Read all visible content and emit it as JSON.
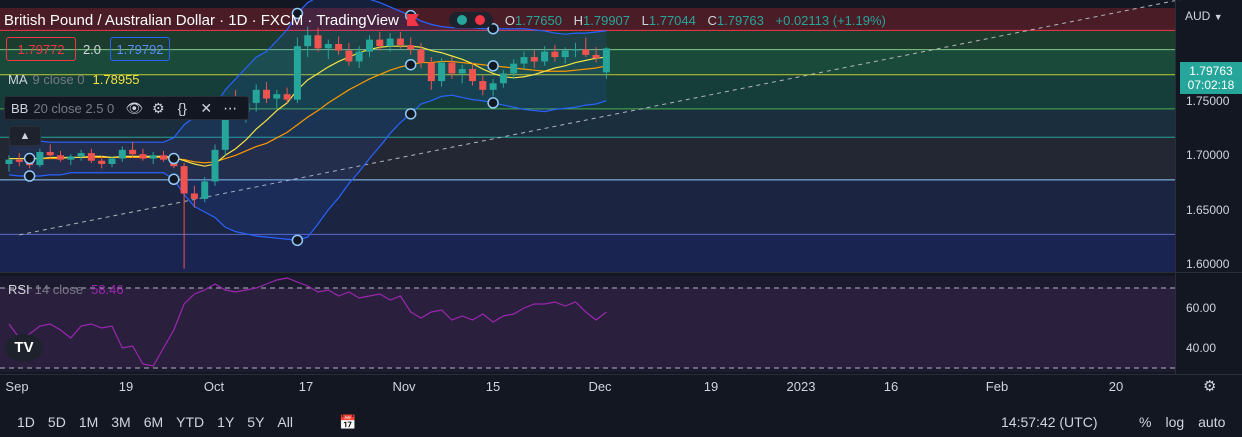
{
  "header": {
    "title": "British Pound / Australian Dollar · 1D · FXCM · TradingView",
    "ohlc": {
      "o_label": "O",
      "o": "1.77650",
      "h_label": "H",
      "h": "1.79907",
      "l_label": "L",
      "l": "1.77044",
      "c_label": "C",
      "c": "1.79763",
      "change": "+0.02113 (+1.19%)"
    },
    "sell_price": "1.79772",
    "spread": "2.0",
    "buy_price": "1.79792",
    "currency": "AUD"
  },
  "indicators": {
    "ma": {
      "name": "MA",
      "args": "9 close 0",
      "value": "1.78955"
    },
    "bb": {
      "name": "BB",
      "args": "20 close 2.5 0"
    },
    "rsi": {
      "name": "RSI",
      "args": "14 close",
      "value": "58.46"
    }
  },
  "price_tag": {
    "price": "1.79763",
    "countdown": "07:02:18"
  },
  "colors": {
    "background": "#131722",
    "up": "#26a69a",
    "down": "#ef5350",
    "ma": "#f5e342",
    "bb_basis": "#ff9800",
    "bb_band": "#2962ff",
    "rsi": "#9c27b0"
  },
  "icons": [
    "eye-icon",
    "gear-icon",
    "braces-icon",
    "close-icon",
    "more-icon",
    "chevron-up-icon",
    "calendar-range-icon",
    "settings-icon"
  ],
  "timeframes": [
    "1D",
    "5D",
    "1M",
    "3M",
    "6M",
    "YTD",
    "1Y",
    "5Y",
    "All"
  ],
  "clock": "14:57:42 (UTC)",
  "scale_options": [
    "%",
    "log",
    "auto"
  ],
  "chart_data": {
    "type": "candlestick",
    "x_ticks": [
      "Sep",
      "19",
      "Oct",
      "17",
      "Nov",
      "15",
      "Dec",
      "19",
      "2023",
      "16",
      "Feb",
      "20"
    ],
    "y_ticks": [
      "1.75000",
      "1.70000",
      "1.65000",
      "1.60000"
    ],
    "rsi_ticks": [
      "60.00",
      "40.00"
    ],
    "ylim": [
      1.593,
      1.835
    ],
    "rsi_ylim": [
      28,
      76
    ],
    "rsi_bands": [
      70,
      30
    ],
    "fib_levels": [
      1.8145,
      1.7968,
      1.7738,
      1.7425,
      1.7165,
      1.6775,
      1.6275
    ],
    "trend_line": [
      [
        1,
        1.627
      ],
      [
        163,
        1.937
      ]
    ],
    "candles": [
      [
        1.692,
        1.7,
        1.685,
        1.696
      ],
      [
        1.696,
        1.702,
        1.69,
        1.694
      ],
      [
        1.694,
        1.699,
        1.688,
        1.691
      ],
      [
        1.691,
        1.706,
        1.689,
        1.703
      ],
      [
        1.703,
        1.71,
        1.697,
        1.7
      ],
      [
        1.7,
        1.704,
        1.694,
        1.696
      ],
      [
        1.696,
        1.701,
        1.691,
        1.699
      ],
      [
        1.699,
        1.705,
        1.695,
        1.702
      ],
      [
        1.702,
        1.706,
        1.693,
        1.695
      ],
      [
        1.695,
        1.699,
        1.688,
        1.692
      ],
      [
        1.692,
        1.699,
        1.689,
        1.697
      ],
      [
        1.697,
        1.708,
        1.694,
        1.705
      ],
      [
        1.705,
        1.712,
        1.698,
        1.701
      ],
      [
        1.701,
        1.706,
        1.695,
        1.697
      ],
      [
        1.697,
        1.703,
        1.692,
        1.7
      ],
      [
        1.7,
        1.704,
        1.694,
        1.696
      ],
      [
        1.696,
        1.7,
        1.688,
        1.69
      ],
      [
        1.69,
        1.693,
        1.596,
        1.665
      ],
      [
        1.665,
        1.672,
        1.652,
        1.66
      ],
      [
        1.66,
        1.68,
        1.657,
        1.676
      ],
      [
        1.676,
        1.71,
        1.672,
        1.705
      ],
      [
        1.705,
        1.752,
        1.7,
        1.745
      ],
      [
        1.745,
        1.76,
        1.735,
        1.74
      ],
      [
        1.74,
        1.752,
        1.73,
        1.748
      ],
      [
        1.748,
        1.765,
        1.74,
        1.76
      ],
      [
        1.76,
        1.767,
        1.748,
        1.752
      ],
      [
        1.752,
        1.76,
        1.743,
        1.756
      ],
      [
        1.756,
        1.762,
        1.748,
        1.751
      ],
      [
        1.751,
        1.808,
        1.748,
        1.8
      ],
      [
        1.8,
        1.818,
        1.79,
        1.81
      ],
      [
        1.81,
        1.817,
        1.795,
        1.798
      ],
      [
        1.798,
        1.806,
        1.788,
        1.802
      ],
      [
        1.802,
        1.809,
        1.792,
        1.796
      ],
      [
        1.796,
        1.803,
        1.782,
        1.786
      ],
      [
        1.786,
        1.8,
        1.78,
        1.795
      ],
      [
        1.795,
        1.81,
        1.79,
        1.806
      ],
      [
        1.806,
        1.813,
        1.796,
        1.8
      ],
      [
        1.8,
        1.812,
        1.795,
        1.807
      ],
      [
        1.807,
        1.813,
        1.798,
        1.801
      ],
      [
        1.801,
        1.808,
        1.792,
        1.797
      ],
      [
        1.797,
        1.803,
        1.78,
        1.785
      ],
      [
        1.785,
        1.79,
        1.76,
        1.768
      ],
      [
        1.768,
        1.789,
        1.763,
        1.785
      ],
      [
        1.785,
        1.79,
        1.77,
        1.775
      ],
      [
        1.775,
        1.783,
        1.766,
        1.779
      ],
      [
        1.779,
        1.785,
        1.764,
        1.768
      ],
      [
        1.768,
        1.773,
        1.755,
        1.76
      ],
      [
        1.76,
        1.77,
        1.754,
        1.766
      ],
      [
        1.766,
        1.778,
        1.762,
        1.775
      ],
      [
        1.775,
        1.788,
        1.77,
        1.784
      ],
      [
        1.784,
        1.795,
        1.779,
        1.79
      ],
      [
        1.79,
        1.796,
        1.78,
        1.786
      ],
      [
        1.786,
        1.8,
        1.782,
        1.795
      ],
      [
        1.795,
        1.801,
        1.786,
        1.79
      ],
      [
        1.79,
        1.799,
        1.784,
        1.796
      ],
      [
        1.796,
        1.803,
        1.79,
        1.797
      ],
      [
        1.797,
        1.808,
        1.79,
        1.792
      ],
      [
        1.792,
        1.799,
        1.785,
        1.789
      ],
      [
        1.776,
        1.799,
        1.77,
        1.798
      ]
    ],
    "ma": [
      1.697,
      1.697,
      1.697,
      1.697,
      1.698,
      1.698,
      1.698,
      1.698,
      1.699,
      1.699,
      1.698,
      1.699,
      1.699,
      1.699,
      1.699,
      1.699,
      1.698,
      1.695,
      1.692,
      1.69,
      1.692,
      1.7,
      1.706,
      1.714,
      1.724,
      1.732,
      1.741,
      1.748,
      1.76,
      1.769,
      1.775,
      1.781,
      1.786,
      1.79,
      1.794,
      1.797,
      1.799,
      1.8,
      1.8,
      1.8,
      1.799,
      1.796,
      1.794,
      1.791,
      1.788,
      1.784,
      1.779,
      1.775,
      1.772,
      1.771,
      1.772,
      1.774,
      1.777,
      1.78,
      1.782,
      1.785,
      1.787,
      1.789,
      1.79
    ],
    "bb_basis": [
      1.697,
      1.697,
      1.697,
      1.697,
      1.697,
      1.697,
      1.698,
      1.698,
      1.698,
      1.698,
      1.698,
      1.698,
      1.698,
      1.698,
      1.698,
      1.698,
      1.697,
      1.696,
      1.694,
      1.693,
      1.694,
      1.697,
      1.7,
      1.704,
      1.708,
      1.711,
      1.716,
      1.721,
      1.728,
      1.735,
      1.741,
      1.748,
      1.754,
      1.76,
      1.765,
      1.77,
      1.774,
      1.778,
      1.781,
      1.783,
      1.785,
      1.785,
      1.786,
      1.786,
      1.785,
      1.784,
      1.783,
      1.782,
      1.781,
      1.78,
      1.779,
      1.778,
      1.777,
      1.777,
      1.777,
      1.778,
      1.779,
      1.78,
      1.782
    ],
    "bb_upper": [
      1.712,
      1.713,
      1.713,
      1.713,
      1.712,
      1.712,
      1.712,
      1.712,
      1.712,
      1.712,
      1.712,
      1.712,
      1.712,
      1.712,
      1.712,
      1.712,
      1.716,
      1.728,
      1.735,
      1.738,
      1.745,
      1.76,
      1.77,
      1.78,
      1.79,
      1.795,
      1.805,
      1.815,
      1.83,
      1.84,
      1.845,
      1.846,
      1.847,
      1.846,
      1.845,
      1.843,
      1.84,
      1.836,
      1.832,
      1.828,
      1.823,
      1.82,
      1.818,
      1.817,
      1.817,
      1.817,
      1.816,
      1.816,
      1.816,
      1.816,
      1.816,
      1.815,
      1.814,
      1.812,
      1.811,
      1.812,
      1.812,
      1.813,
      1.814
    ],
    "bb_lower": [
      1.682,
      1.681,
      1.681,
      1.681,
      1.682,
      1.682,
      1.684,
      1.684,
      1.684,
      1.684,
      1.684,
      1.684,
      1.684,
      1.684,
      1.684,
      1.684,
      1.678,
      1.664,
      1.653,
      1.648,
      1.643,
      1.634,
      1.63,
      1.628,
      1.626,
      1.625,
      1.624,
      1.623,
      1.622,
      1.625,
      1.637,
      1.65,
      1.661,
      1.674,
      1.685,
      1.697,
      1.708,
      1.72,
      1.73,
      1.738,
      1.747,
      1.75,
      1.754,
      1.755,
      1.753,
      1.751,
      1.75,
      1.748,
      1.746,
      1.744,
      1.742,
      1.741,
      1.74,
      1.742,
      1.743,
      1.744,
      1.746,
      1.747,
      1.75
    ],
    "rsi": [
      52,
      45,
      47,
      51,
      52,
      49,
      45,
      51,
      52,
      50,
      51,
      40,
      41,
      32,
      31,
      40,
      49,
      62,
      67,
      69,
      72,
      69,
      68,
      69,
      70,
      72,
      74,
      75,
      73,
      71,
      68,
      69,
      66,
      68,
      65,
      66,
      67,
      64,
      66,
      58,
      55,
      58,
      59,
      54,
      56,
      54,
      57,
      53,
      56,
      57,
      60,
      62,
      62,
      63,
      61,
      63,
      58,
      54,
      58
    ],
    "markers": [
      {
        "series": "bb_upper",
        "i": [
          28,
          39,
          47
        ]
      },
      {
        "series": "bb_lower",
        "i": [
          2,
          16,
          28,
          39,
          47
        ]
      },
      {
        "series": "bb_basis",
        "i": [
          2,
          16,
          39,
          47
        ]
      }
    ]
  }
}
